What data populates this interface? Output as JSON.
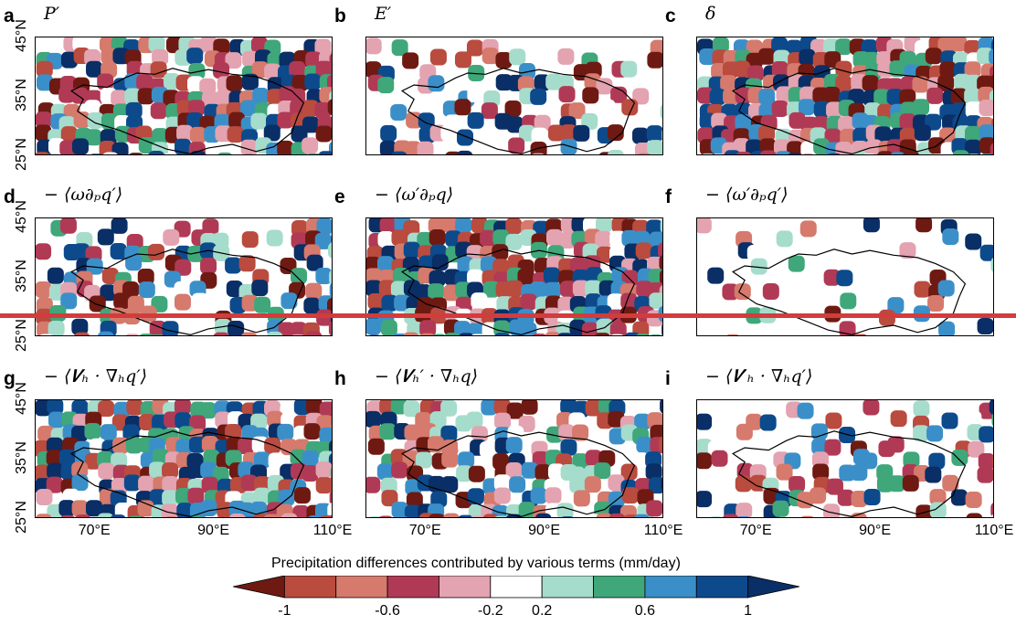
{
  "figure": {
    "panels": [
      {
        "id": "a",
        "letter": "a",
        "term": "P′"
      },
      {
        "id": "b",
        "letter": "b",
        "term": "E′"
      },
      {
        "id": "c",
        "letter": "c",
        "term": "δ"
      },
      {
        "id": "d",
        "letter": "d",
        "term": "− ⟨ω∂ₚq′⟩"
      },
      {
        "id": "e",
        "letter": "e",
        "term": "− ⟨ω′∂ₚq⟩"
      },
      {
        "id": "f",
        "letter": "f",
        "term": "− ⟨ω′∂ₚq′⟩"
      },
      {
        "id": "g",
        "letter": "g",
        "term": "− ⟨𝑽ₕ · ∇ₕq′⟩"
      },
      {
        "id": "h",
        "letter": "h",
        "term": "− ⟨𝑽ₕ′ · ∇ₕq⟩"
      },
      {
        "id": "i",
        "letter": "i",
        "term": "− ⟨𝑽′ₕ · ∇ₕq′⟩"
      }
    ],
    "y_ticks": [
      "45°N",
      "35°N",
      "25°N"
    ],
    "x_ticks": [
      "70°E",
      "90°E",
      "110°E"
    ]
  },
  "chart_data": {
    "type": "heatmap",
    "variable": "Precipitation differences contributed by various terms (mm/day)",
    "x_range_deg_E": [
      60,
      110
    ],
    "y_range_deg_N": [
      25,
      45
    ],
    "colorbar": {
      "title": "Precipitation differences contributed by various terms (mm/day)",
      "tick_labels": [
        "-1",
        "-0.6",
        "-0.2",
        "0.2",
        "0.6",
        "1"
      ],
      "tick_values": [
        -1,
        -0.6,
        -0.2,
        0.2,
        0.6,
        1
      ],
      "levels": [
        -1,
        -0.8,
        -0.6,
        -0.4,
        -0.2,
        0.2,
        0.4,
        0.6,
        0.8,
        1
      ],
      "colors": [
        "#6e1a12",
        "#b94b3f",
        "#d57a6c",
        "#b03a55",
        "#e3a3b0",
        "#ffffff",
        "#a6dccc",
        "#3fa77a",
        "#3b8fc9",
        "#0d4a8c",
        "#0a2e66"
      ],
      "extend": "both"
    },
    "panels": [
      "a",
      "b",
      "c",
      "d",
      "e",
      "f",
      "g",
      "h",
      "i"
    ]
  },
  "colors": {
    "annotation_line": "#d23c3c"
  }
}
